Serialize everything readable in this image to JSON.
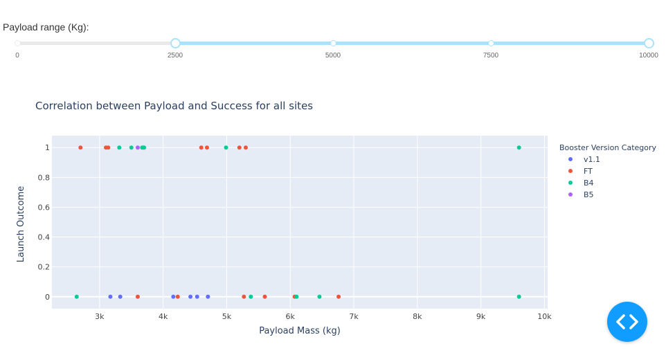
{
  "slider": {
    "label": "Payload range (Kg):",
    "min": 0,
    "max": 10000,
    "value_low": 2500,
    "value_high": 10000,
    "marks": [
      "0",
      "2500",
      "5000",
      "7500",
      "10000"
    ],
    "mark_values": [
      0,
      2500,
      5000,
      7500,
      10000
    ]
  },
  "chart_data": {
    "type": "scatter",
    "title": "Correlation between Payload and Success for all sites",
    "xlabel": "Payload Mass (kg)",
    "ylabel": "Launch Outcome",
    "xlim": [
      2250,
      10050
    ],
    "ylim": [
      -0.08,
      1.08
    ],
    "xticks": [
      3000,
      4000,
      5000,
      6000,
      7000,
      8000,
      9000,
      10000
    ],
    "xtick_labels": [
      "3k",
      "4k",
      "5k",
      "6k",
      "7k",
      "8k",
      "9k",
      "10k"
    ],
    "yticks": [
      0,
      0.2,
      0.4,
      0.6,
      0.8,
      1
    ],
    "ytick_labels": [
      "0",
      "0.2",
      "0.4",
      "0.6",
      "0.8",
      "1"
    ],
    "legend_title": "Booster Version Category",
    "legend_position": "right",
    "series": [
      {
        "name": "v1.1",
        "color": "#636efa",
        "points": [
          [
            3170,
            0
          ],
          [
            3325,
            0
          ],
          [
            4160,
            0
          ],
          [
            4430,
            0
          ],
          [
            4535,
            0
          ],
          [
            4705,
            0
          ]
        ]
      },
      {
        "name": "FT",
        "color": "#ef553b",
        "points": [
          [
            2700,
            1
          ],
          [
            3100,
            1
          ],
          [
            3136,
            1
          ],
          [
            3600,
            0
          ],
          [
            3690,
            1
          ],
          [
            4230,
            0
          ],
          [
            4600,
            1
          ],
          [
            4690,
            1
          ],
          [
            5200,
            1
          ],
          [
            5300,
            1
          ],
          [
            5271,
            0
          ],
          [
            5600,
            0
          ],
          [
            6070,
            0
          ],
          [
            6761,
            0
          ]
        ]
      },
      {
        "name": "B4",
        "color": "#00cc96",
        "points": [
          [
            2640,
            0
          ],
          [
            3310,
            1
          ],
          [
            3500,
            1
          ],
          [
            3670,
            1
          ],
          [
            3700,
            1
          ],
          [
            4990,
            1
          ],
          [
            5380,
            0
          ],
          [
            6100,
            0
          ],
          [
            6460,
            0
          ],
          [
            9600,
            1
          ],
          [
            9600,
            0
          ]
        ]
      },
      {
        "name": "B5",
        "color": "#ab63fa",
        "points": [
          [
            3600,
            1
          ]
        ]
      }
    ]
  }
}
